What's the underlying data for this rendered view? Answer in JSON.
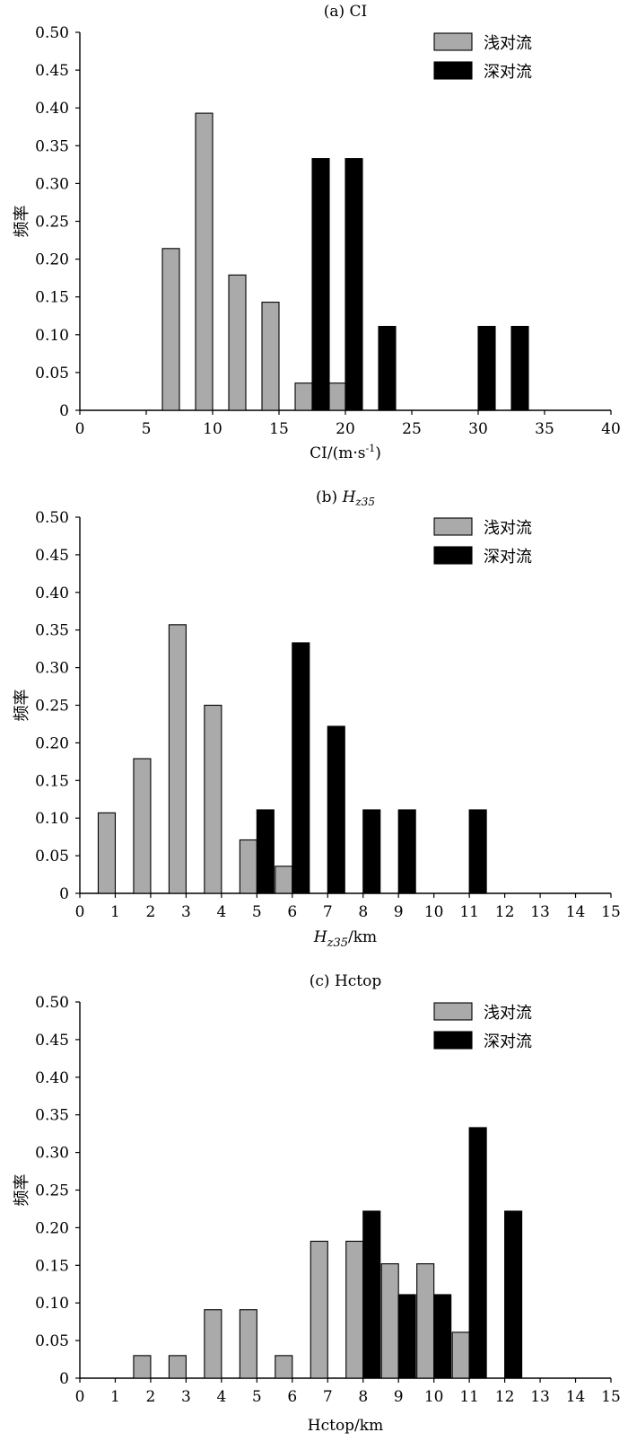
{
  "chart_data": [
    {
      "type": "bar",
      "title": "(a) CI",
      "xlabel": "CI/(m·s⁻¹)",
      "ylabel": "频率",
      "xlim": [
        0,
        40
      ],
      "ylim": [
        0,
        0.5
      ],
      "xticks": [
        0,
        5,
        10,
        15,
        20,
        25,
        30,
        35,
        40
      ],
      "yticks": [
        "0",
        "0.05",
        "0.10",
        "0.15",
        "0.20",
        "0.25",
        "0.30",
        "0.35",
        "0.40",
        "0.45",
        "0.50"
      ],
      "legend_position": "top-right",
      "series": [
        {
          "name": "浅对流",
          "color": "#aaaaaa",
          "x": [
            7.5,
            10,
            12.5,
            15,
            17.5,
            20
          ],
          "values": [
            0.214,
            0.393,
            0.179,
            0.143,
            0.036,
            0.036
          ]
        },
        {
          "name": "深对流",
          "color": "#000000",
          "x": [
            17.5,
            20,
            22.5,
            30,
            32.5
          ],
          "values": [
            0.333,
            0.333,
            0.111,
            0.111,
            0.111
          ]
        }
      ]
    },
    {
      "type": "bar",
      "title": "(b) Hz35",
      "xlabel": "Hz35/km",
      "ylabel": "频率",
      "xlim": [
        0,
        15
      ],
      "ylim": [
        0,
        0.5
      ],
      "xticks": [
        0,
        1,
        2,
        3,
        4,
        5,
        6,
        7,
        8,
        9,
        10,
        11,
        12,
        13,
        14,
        15
      ],
      "yticks": [
        "0",
        "0.05",
        "0.10",
        "0.15",
        "0.20",
        "0.25",
        "0.30",
        "0.35",
        "0.40",
        "0.45",
        "0.50"
      ],
      "legend_position": "top-right",
      "series": [
        {
          "name": "浅对流",
          "color": "#aaaaaa",
          "x": [
            1,
            2,
            3,
            4,
            5,
            6
          ],
          "values": [
            0.107,
            0.179,
            0.357,
            0.25,
            0.071,
            0.036
          ]
        },
        {
          "name": "深对流",
          "color": "#000000",
          "x": [
            5,
            6,
            7,
            8,
            9,
            11
          ],
          "values": [
            0.111,
            0.333,
            0.222,
            0.111,
            0.111,
            0.111
          ]
        }
      ]
    },
    {
      "type": "bar",
      "title": "(c) Hctop",
      "xlabel": "Hctop/km",
      "ylabel": "频率",
      "xlim": [
        0,
        15
      ],
      "ylim": [
        0,
        0.5
      ],
      "xticks": [
        0,
        1,
        2,
        3,
        4,
        5,
        6,
        7,
        8,
        9,
        10,
        11,
        12,
        13,
        14,
        15
      ],
      "yticks": [
        "0",
        "0.05",
        "0.10",
        "0.15",
        "0.20",
        "0.25",
        "0.30",
        "0.35",
        "0.40",
        "0.45",
        "0.50"
      ],
      "legend_position": "top-right",
      "series": [
        {
          "name": "浅对流",
          "color": "#aaaaaa",
          "x": [
            2,
            3,
            4,
            5,
            6,
            7,
            8,
            9,
            10,
            11
          ],
          "values": [
            0.03,
            0.03,
            0.091,
            0.091,
            0.03,
            0.182,
            0.182,
            0.152,
            0.152,
            0.061
          ]
        },
        {
          "name": "深对流",
          "color": "#000000",
          "x": [
            8,
            9,
            10,
            11,
            12
          ],
          "values": [
            0.222,
            0.111,
            0.111,
            0.333,
            0.222
          ]
        }
      ]
    }
  ]
}
